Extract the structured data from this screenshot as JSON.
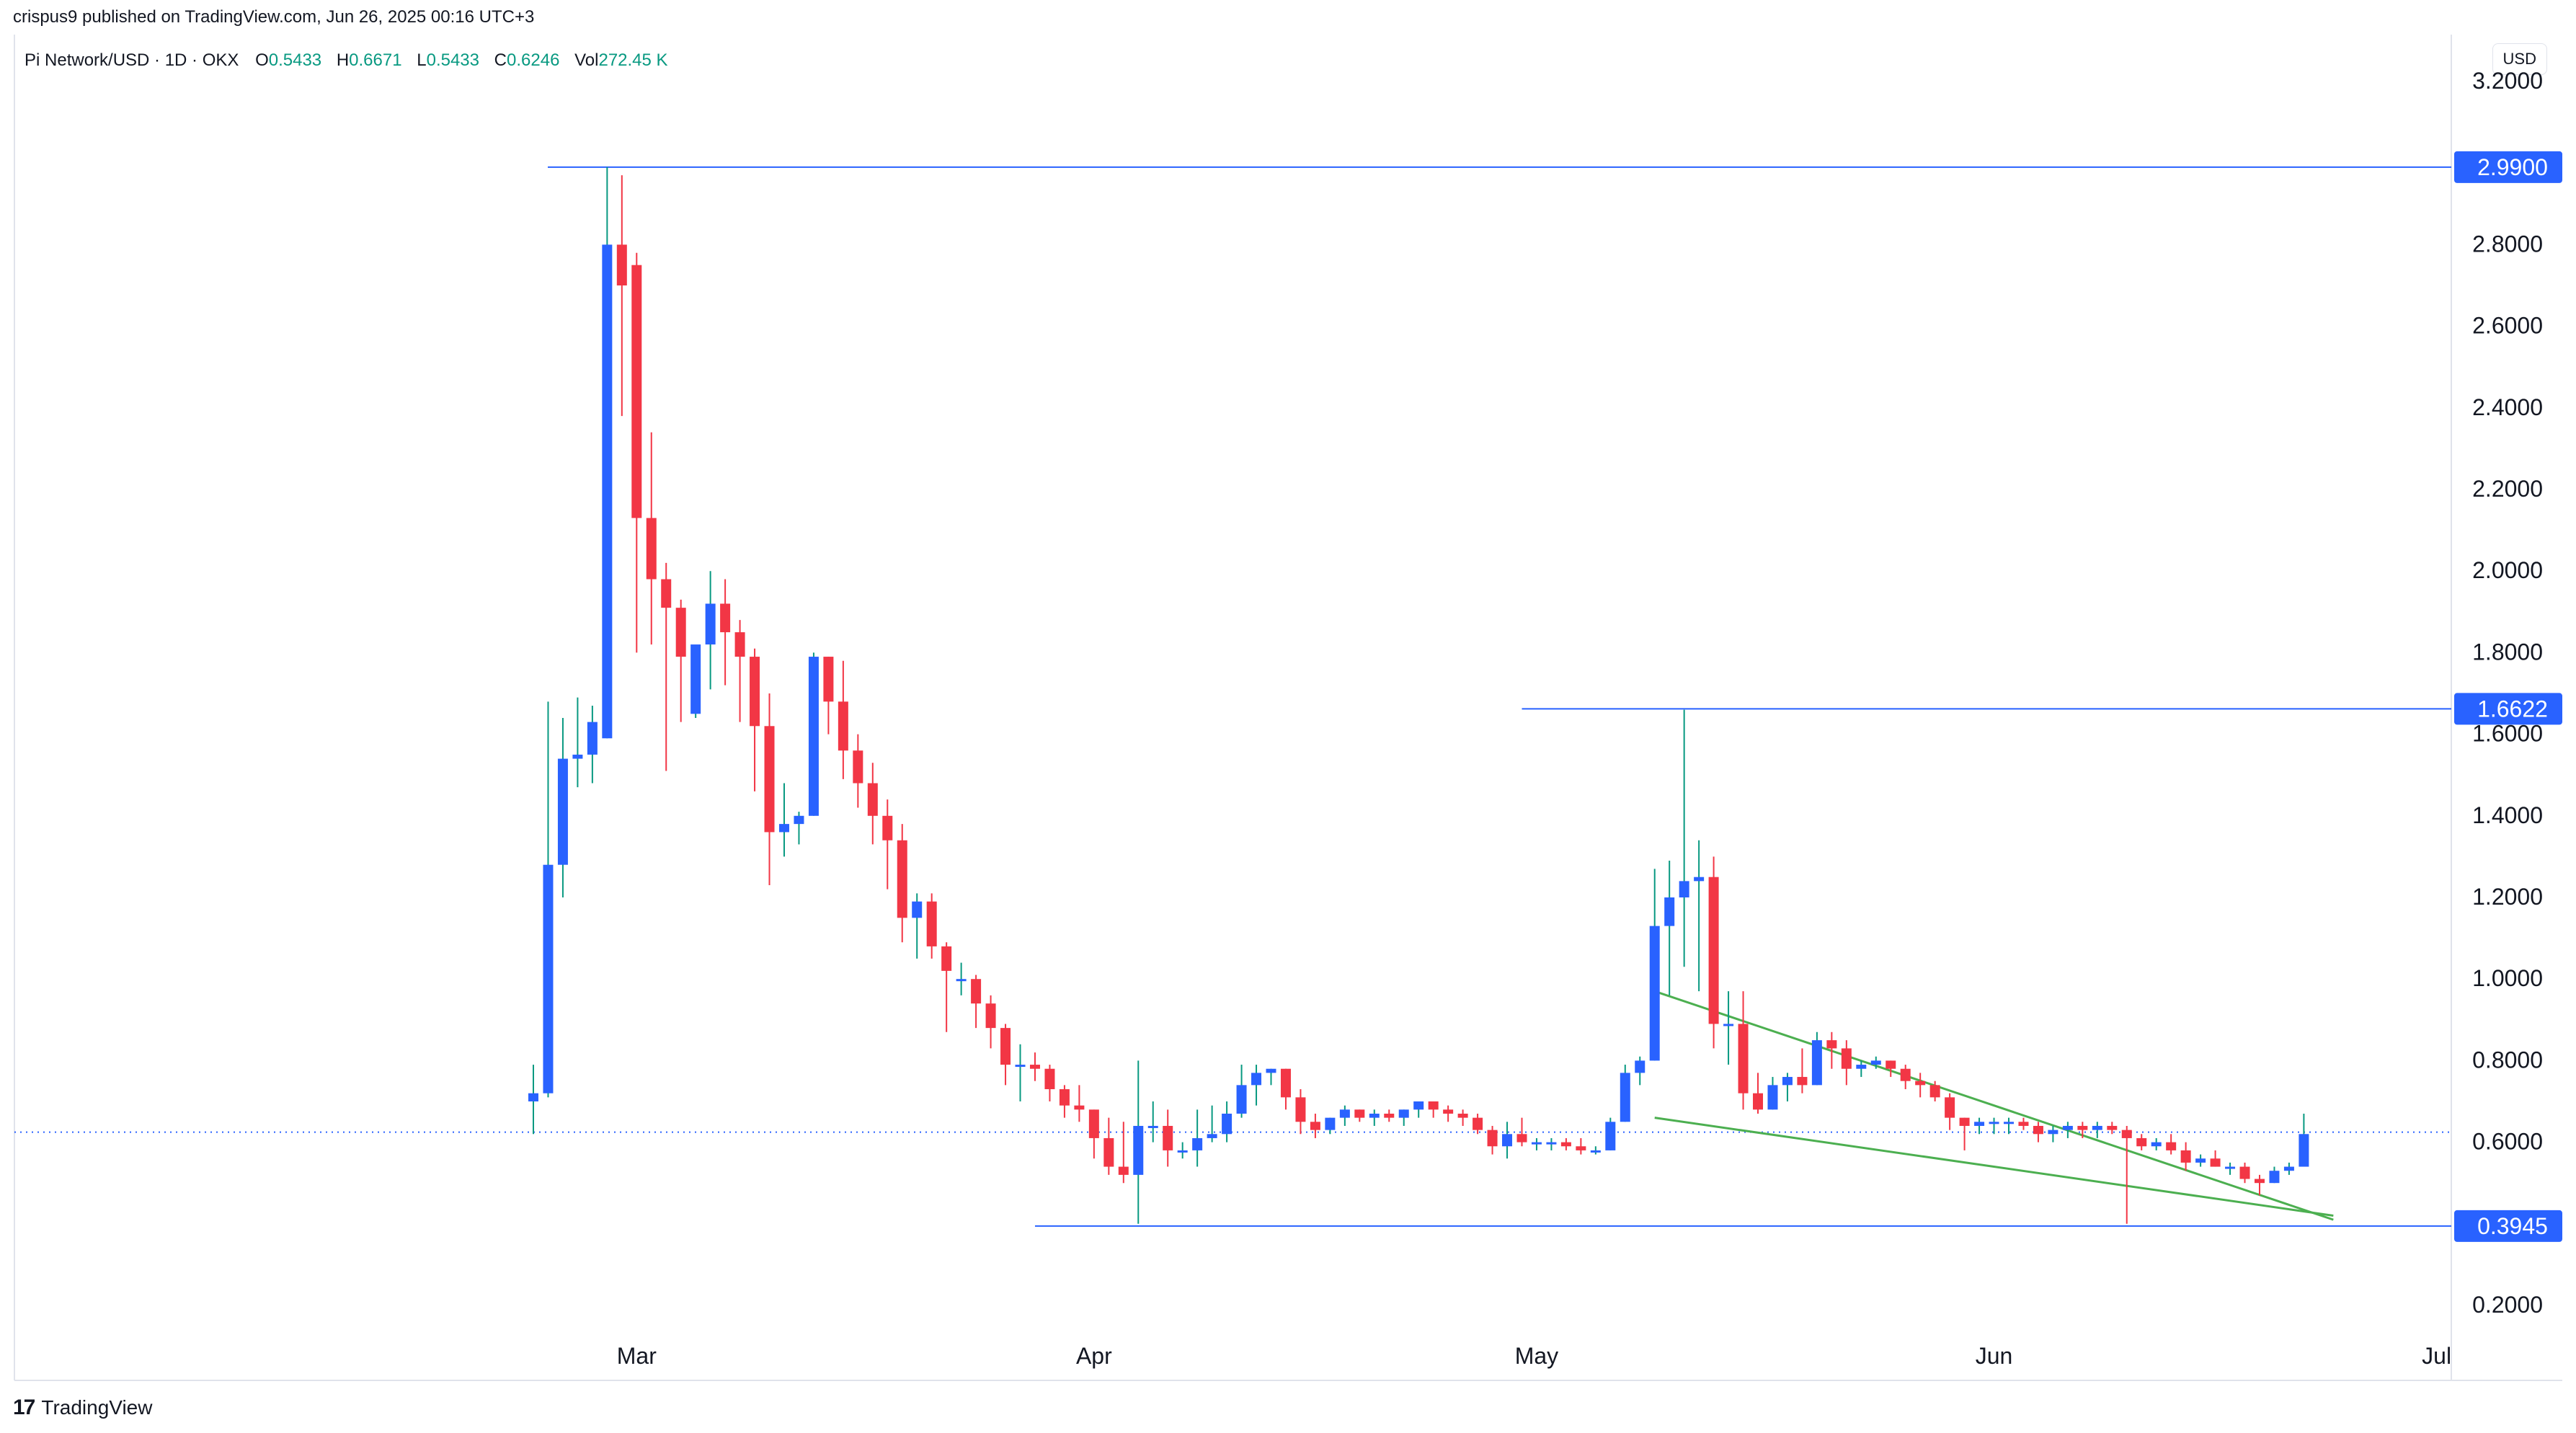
{
  "header": {
    "published_line": "crispus9 published on TradingView.com, Jun 26, 2025 00:16 UTC+3",
    "symbol_line": "Pi Network/USD · 1D · OKX",
    "o_label": "O",
    "o_value": "0.5433",
    "h_label": "H",
    "h_value": "0.6671",
    "l_label": "L",
    "l_value": "0.5433",
    "c_label": "C",
    "c_value": "0.6246",
    "vol_label": "Vol",
    "vol_value": "272.45 K"
  },
  "currency_button": "USD",
  "footer": {
    "logo_glyph": "17",
    "brand": "TradingView"
  },
  "colors": {
    "up": "#2962ff",
    "down": "#f23645",
    "wick_up": "#089981",
    "level_line": "#2962ff",
    "wedge": "#4caf50"
  },
  "chart_data": {
    "type": "candlestick",
    "title": "Pi Network/USD · 1D · OKX",
    "ylim": [
      0.2,
      3.2
    ],
    "y_ticks": [
      "0.2000",
      "0.6000",
      "0.8000",
      "1.0000",
      "1.2000",
      "1.4000",
      "1.6000",
      "1.8000",
      "2.0000",
      "2.2000",
      "2.4000",
      "2.6000",
      "2.8000",
      "3.2000"
    ],
    "x_ticks": [
      {
        "label": "Mar",
        "day": 7
      },
      {
        "label": "Apr",
        "day": 38
      },
      {
        "label": "May",
        "day": 68
      },
      {
        "label": "Jun",
        "day": 99
      },
      {
        "label": "Jul",
        "day": 129
      }
    ],
    "levels": [
      {
        "label": "2.9900",
        "value": 2.99,
        "from_day": 0
      },
      {
        "label": "1.6622",
        "value": 1.6622,
        "from_day": 67
      },
      {
        "label": "0.3945",
        "value": 0.3945,
        "from_day": 34
      }
    ],
    "last_price": 0.6246,
    "wedge": {
      "upper": [
        {
          "day": 76,
          "value": 0.97
        },
        {
          "day": 122,
          "value": 0.41
        }
      ],
      "lower": [
        {
          "day": 76,
          "value": 0.66
        },
        {
          "day": 122,
          "value": 0.42
        }
      ]
    },
    "candles": [
      [
        0.7,
        0.79,
        0.62,
        0.72
      ],
      [
        0.72,
        1.68,
        0.71,
        1.28
      ],
      [
        1.28,
        1.64,
        1.2,
        1.54
      ],
      [
        1.54,
        1.69,
        1.47,
        1.55
      ],
      [
        1.55,
        1.67,
        1.48,
        1.63
      ],
      [
        1.59,
        2.99,
        1.59,
        2.8
      ],
      [
        2.8,
        2.97,
        2.38,
        2.7
      ],
      [
        2.75,
        2.78,
        1.8,
        2.13
      ],
      [
        2.13,
        2.34,
        1.82,
        1.98
      ],
      [
        1.98,
        2.02,
        1.51,
        1.91
      ],
      [
        1.91,
        1.93,
        1.63,
        1.79
      ],
      [
        1.65,
        1.81,
        1.64,
        1.82
      ],
      [
        1.82,
        2.0,
        1.71,
        1.92
      ],
      [
        1.92,
        1.98,
        1.72,
        1.85
      ],
      [
        1.85,
        1.88,
        1.63,
        1.79
      ],
      [
        1.79,
        1.81,
        1.46,
        1.62
      ],
      [
        1.62,
        1.7,
        1.23,
        1.36
      ],
      [
        1.36,
        1.48,
        1.3,
        1.38
      ],
      [
        1.38,
        1.41,
        1.33,
        1.4
      ],
      [
        1.4,
        1.8,
        1.4,
        1.79
      ],
      [
        1.79,
        1.79,
        1.6,
        1.68
      ],
      [
        1.68,
        1.78,
        1.49,
        1.56
      ],
      [
        1.56,
        1.6,
        1.42,
        1.48
      ],
      [
        1.48,
        1.53,
        1.33,
        1.4
      ],
      [
        1.4,
        1.44,
        1.22,
        1.34
      ],
      [
        1.34,
        1.38,
        1.09,
        1.15
      ],
      [
        1.15,
        1.21,
        1.05,
        1.19
      ],
      [
        1.19,
        1.21,
        1.05,
        1.08
      ],
      [
        1.08,
        1.09,
        0.87,
        1.02
      ],
      [
        1.0,
        1.04,
        0.96,
        1.0
      ],
      [
        1.0,
        1.01,
        0.88,
        0.94
      ],
      [
        0.94,
        0.96,
        0.83,
        0.88
      ],
      [
        0.88,
        0.89,
        0.74,
        0.79
      ],
      [
        0.79,
        0.84,
        0.7,
        0.79
      ],
      [
        0.79,
        0.82,
        0.75,
        0.78
      ],
      [
        0.78,
        0.79,
        0.7,
        0.73
      ],
      [
        0.73,
        0.74,
        0.66,
        0.69
      ],
      [
        0.69,
        0.74,
        0.65,
        0.68
      ],
      [
        0.68,
        0.68,
        0.56,
        0.61
      ],
      [
        0.61,
        0.66,
        0.52,
        0.54
      ],
      [
        0.54,
        0.65,
        0.5,
        0.52
      ],
      [
        0.52,
        0.8,
        0.4,
        0.64
      ],
      [
        0.64,
        0.7,
        0.6,
        0.64
      ],
      [
        0.64,
        0.68,
        0.54,
        0.58
      ],
      [
        0.58,
        0.6,
        0.56,
        0.58
      ],
      [
        0.58,
        0.68,
        0.54,
        0.61
      ],
      [
        0.61,
        0.69,
        0.6,
        0.62
      ],
      [
        0.62,
        0.7,
        0.6,
        0.67
      ],
      [
        0.67,
        0.79,
        0.66,
        0.74
      ],
      [
        0.74,
        0.79,
        0.69,
        0.77
      ],
      [
        0.77,
        0.78,
        0.74,
        0.78
      ],
      [
        0.78,
        0.78,
        0.68,
        0.71
      ],
      [
        0.71,
        0.73,
        0.62,
        0.65
      ],
      [
        0.65,
        0.67,
        0.61,
        0.63
      ],
      [
        0.63,
        0.66,
        0.62,
        0.66
      ],
      [
        0.66,
        0.69,
        0.64,
        0.68
      ],
      [
        0.68,
        0.68,
        0.65,
        0.66
      ],
      [
        0.66,
        0.68,
        0.64,
        0.67
      ],
      [
        0.67,
        0.68,
        0.65,
        0.66
      ],
      [
        0.66,
        0.68,
        0.64,
        0.68
      ],
      [
        0.68,
        0.69,
        0.66,
        0.7
      ],
      [
        0.7,
        0.7,
        0.66,
        0.68
      ],
      [
        0.68,
        0.69,
        0.65,
        0.67
      ],
      [
        0.67,
        0.68,
        0.64,
        0.66
      ],
      [
        0.66,
        0.67,
        0.62,
        0.63
      ],
      [
        0.63,
        0.64,
        0.57,
        0.59
      ],
      [
        0.59,
        0.65,
        0.56,
        0.62
      ],
      [
        0.62,
        0.66,
        0.59,
        0.6
      ],
      [
        0.6,
        0.61,
        0.58,
        0.6
      ],
      [
        0.6,
        0.61,
        0.58,
        0.6
      ],
      [
        0.6,
        0.61,
        0.58,
        0.59
      ],
      [
        0.59,
        0.61,
        0.57,
        0.58
      ],
      [
        0.58,
        0.59,
        0.57,
        0.58
      ],
      [
        0.58,
        0.66,
        0.58,
        0.65
      ],
      [
        0.65,
        0.79,
        0.65,
        0.77
      ],
      [
        0.77,
        0.81,
        0.74,
        0.8
      ],
      [
        0.8,
        1.27,
        0.8,
        1.13
      ],
      [
        1.13,
        1.29,
        0.96,
        1.2
      ],
      [
        1.2,
        1.66,
        1.03,
        1.24
      ],
      [
        1.24,
        1.34,
        0.97,
        1.25
      ],
      [
        1.25,
        1.3,
        0.83,
        0.89
      ],
      [
        0.89,
        0.97,
        0.79,
        0.89
      ],
      [
        0.89,
        0.97,
        0.68,
        0.72
      ],
      [
        0.72,
        0.77,
        0.67,
        0.68
      ],
      [
        0.68,
        0.76,
        0.68,
        0.74
      ],
      [
        0.74,
        0.77,
        0.7,
        0.76
      ],
      [
        0.76,
        0.83,
        0.72,
        0.74
      ],
      [
        0.74,
        0.87,
        0.74,
        0.85
      ],
      [
        0.85,
        0.87,
        0.78,
        0.83
      ],
      [
        0.83,
        0.85,
        0.74,
        0.78
      ],
      [
        0.78,
        0.8,
        0.76,
        0.79
      ],
      [
        0.79,
        0.81,
        0.78,
        0.8
      ],
      [
        0.8,
        0.8,
        0.76,
        0.78
      ],
      [
        0.78,
        0.79,
        0.73,
        0.75
      ],
      [
        0.75,
        0.77,
        0.71,
        0.74
      ],
      [
        0.74,
        0.75,
        0.7,
        0.71
      ],
      [
        0.71,
        0.72,
        0.63,
        0.66
      ],
      [
        0.66,
        0.66,
        0.58,
        0.64
      ],
      [
        0.64,
        0.66,
        0.62,
        0.65
      ],
      [
        0.65,
        0.66,
        0.62,
        0.65
      ],
      [
        0.65,
        0.66,
        0.62,
        0.65
      ],
      [
        0.65,
        0.66,
        0.63,
        0.64
      ],
      [
        0.64,
        0.65,
        0.6,
        0.62
      ],
      [
        0.62,
        0.64,
        0.6,
        0.63
      ],
      [
        0.63,
        0.65,
        0.61,
        0.64
      ],
      [
        0.64,
        0.65,
        0.61,
        0.63
      ],
      [
        0.63,
        0.65,
        0.61,
        0.64
      ],
      [
        0.64,
        0.65,
        0.62,
        0.63
      ],
      [
        0.63,
        0.64,
        0.4,
        0.61
      ],
      [
        0.61,
        0.62,
        0.58,
        0.59
      ],
      [
        0.59,
        0.61,
        0.58,
        0.6
      ],
      [
        0.6,
        0.62,
        0.57,
        0.58
      ],
      [
        0.58,
        0.6,
        0.53,
        0.55
      ],
      [
        0.55,
        0.57,
        0.54,
        0.56
      ],
      [
        0.56,
        0.58,
        0.54,
        0.54
      ],
      [
        0.54,
        0.55,
        0.52,
        0.54
      ],
      [
        0.54,
        0.55,
        0.5,
        0.51
      ],
      [
        0.51,
        0.52,
        0.47,
        0.5
      ],
      [
        0.5,
        0.54,
        0.5,
        0.53
      ],
      [
        0.53,
        0.55,
        0.52,
        0.54
      ],
      [
        0.54,
        0.67,
        0.54,
        0.62
      ]
    ]
  }
}
